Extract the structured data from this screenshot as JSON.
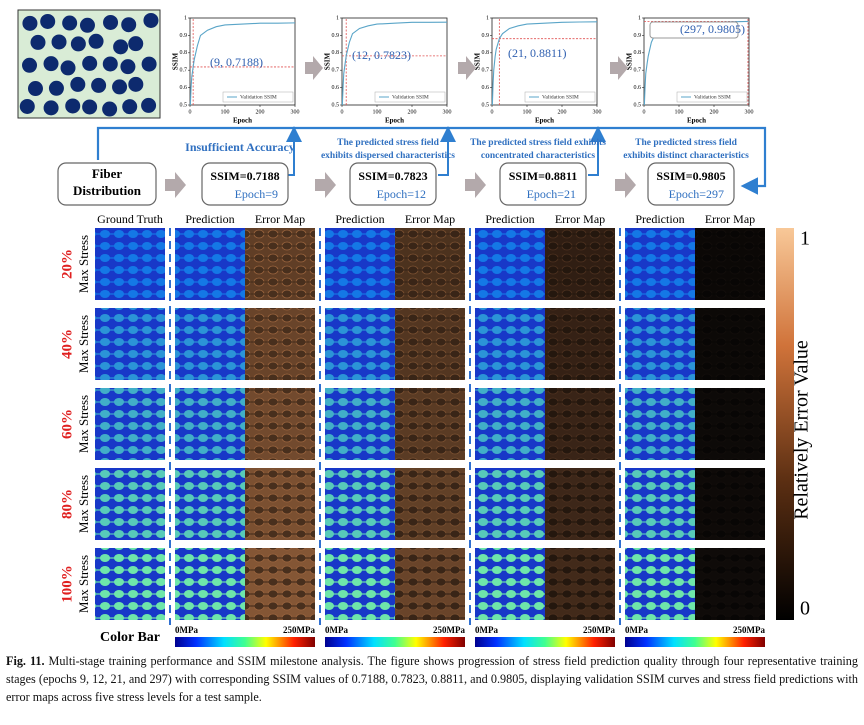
{
  "chart_data": [
    {
      "type": "line",
      "xlabel": "Epoch",
      "ylabel": "SSIM",
      "legend": "Validation SSIM",
      "xlim": [
        0,
        300
      ],
      "ylim": [
        0.5,
        1.0
      ],
      "xticks": [
        0,
        100,
        200,
        300
      ],
      "yticks": [
        0.5,
        0.6,
        0.7,
        0.8,
        0.9,
        1
      ],
      "x": [
        1,
        3,
        5,
        9,
        12,
        21,
        30,
        50,
        75,
        100,
        150,
        200,
        250,
        300
      ],
      "series": [
        {
          "name": "Validation SSIM",
          "color": "#5aa5c8",
          "values": [
            0.5,
            0.6,
            0.66,
            0.7188,
            0.76,
            0.84,
            0.9,
            0.93,
            0.95,
            0.96,
            0.965,
            0.97,
            0.97,
            0.972
          ]
        }
      ],
      "marker": {
        "x": 9,
        "y": 0.7188,
        "color": "#e05050"
      },
      "annotation": "(9, 0.7188)"
    },
    {
      "type": "line",
      "xlabel": "Epoch",
      "ylabel": "SSIM",
      "legend": "Validation SSIM",
      "xlim": [
        0,
        300
      ],
      "ylim": [
        0.5,
        1.0
      ],
      "xticks": [
        0,
        100,
        200,
        300
      ],
      "yticks": [
        0.5,
        0.6,
        0.7,
        0.8,
        0.9,
        1
      ],
      "x": [
        1,
        3,
        5,
        9,
        12,
        21,
        30,
        50,
        75,
        100,
        150,
        200,
        250,
        300
      ],
      "series": [
        {
          "name": "Validation SSIM",
          "color": "#5aa5c8",
          "values": [
            0.5,
            0.6,
            0.68,
            0.74,
            0.7823,
            0.86,
            0.91,
            0.94,
            0.955,
            0.965,
            0.97,
            0.975,
            0.975,
            0.976
          ]
        }
      ],
      "marker": {
        "x": 12,
        "y": 0.7823,
        "color": "#e05050"
      },
      "annotation": "(12, 0.7823)"
    },
    {
      "type": "line",
      "xlabel": "Epoch",
      "ylabel": "SSIM",
      "legend": "Validation SSIM",
      "xlim": [
        0,
        300
      ],
      "ylim": [
        0.5,
        1.0
      ],
      "xticks": [
        0,
        100,
        200,
        300
      ],
      "yticks": [
        0.5,
        0.6,
        0.7,
        0.8,
        0.9,
        1
      ],
      "x": [
        1,
        3,
        5,
        9,
        12,
        21,
        30,
        50,
        75,
        100,
        150,
        200,
        250,
        300
      ],
      "series": [
        {
          "name": "Validation SSIM",
          "color": "#5aa5c8",
          "values": [
            0.5,
            0.62,
            0.7,
            0.78,
            0.82,
            0.8811,
            0.91,
            0.94,
            0.955,
            0.965,
            0.97,
            0.975,
            0.977,
            0.978
          ]
        }
      ],
      "marker": {
        "x": 21,
        "y": 0.8811,
        "color": "#e05050"
      },
      "annotation": "(21, 0.8811)"
    },
    {
      "type": "line",
      "xlabel": "Epoch",
      "ylabel": "SSIM",
      "legend": "Validation SSIM",
      "xlim": [
        0,
        300
      ],
      "ylim": [
        0.5,
        1.0
      ],
      "xticks": [
        0,
        100,
        200,
        300
      ],
      "yticks": [
        0.5,
        0.6,
        0.7,
        0.8,
        0.9,
        1
      ],
      "x": [
        1,
        3,
        5,
        9,
        12,
        21,
        30,
        50,
        75,
        100,
        150,
        200,
        250,
        297
      ],
      "series": [
        {
          "name": "Validation SSIM",
          "color": "#5aa5c8",
          "values": [
            0.5,
            0.6,
            0.68,
            0.74,
            0.78,
            0.86,
            0.9,
            0.93,
            0.95,
            0.96,
            0.97,
            0.975,
            0.978,
            0.9805
          ]
        }
      ],
      "marker": {
        "x": 297,
        "y": 0.9805,
        "color": "#e05050"
      },
      "annotation": "(297, 0.9805)"
    }
  ],
  "flow": {
    "start": [
      "Fiber",
      "Distribution"
    ],
    "stages": [
      {
        "ssim": "SSIM=0.7188",
        "epoch": "Epoch=9",
        "note": [
          "Insufficient Accuracy"
        ]
      },
      {
        "ssim": "SSIM=0.7823",
        "epoch": "Epoch=12",
        "note": [
          "The predicted stress field",
          "exhibits dispersed characteristics"
        ]
      },
      {
        "ssim": "SSIM=0.8811",
        "epoch": "Epoch=21",
        "note": [
          "The predicted stress field exhibits",
          "concentrated characteristics"
        ]
      },
      {
        "ssim": "SSIM=0.9805",
        "epoch": "Epoch=297",
        "note": [
          "The predicted stress field",
          "exhibits distinct characteristics"
        ]
      }
    ]
  },
  "grid": {
    "column_headers": [
      "Ground Truth",
      "Prediction",
      "Error Map",
      "Prediction",
      "Error Map",
      "Prediction",
      "Error Map",
      "Prediction",
      "Error Map"
    ],
    "rows": [
      {
        "percent": "20%",
        "label": "Max Stress"
      },
      {
        "percent": "40%",
        "label": "Max Stress"
      },
      {
        "percent": "60%",
        "label": "Max Stress"
      },
      {
        "percent": "80%",
        "label": "Max Stress"
      },
      {
        "percent": "100%",
        "label": "Max Stress"
      }
    ],
    "error_colorbar": {
      "label": "Relatively Error Value",
      "top": "1",
      "bottom": "0"
    },
    "stress_colorbar": {
      "label": "Color Bar",
      "groups": [
        {
          "min": "0MPa",
          "max": "250MPa"
        },
        {
          "min": "0MPa",
          "max": "250MPa"
        },
        {
          "min": "0MPa",
          "max": "250MPa"
        },
        {
          "min": "0MPa",
          "max": "250MPa"
        }
      ]
    }
  },
  "caption": {
    "label": "Fig. 11.",
    "text": "Multi-stage training performance and SSIM milestone analysis. The figure shows progression of stress field prediction quality through four representative training stages (epochs 9, 12, 21, and 297) with corresponding SSIM values of 0.7188, 0.7823, 0.8811, and 0.9805, displaying validation SSIM curves and stress field predictions with error maps across five stress levels for a test sample."
  }
}
